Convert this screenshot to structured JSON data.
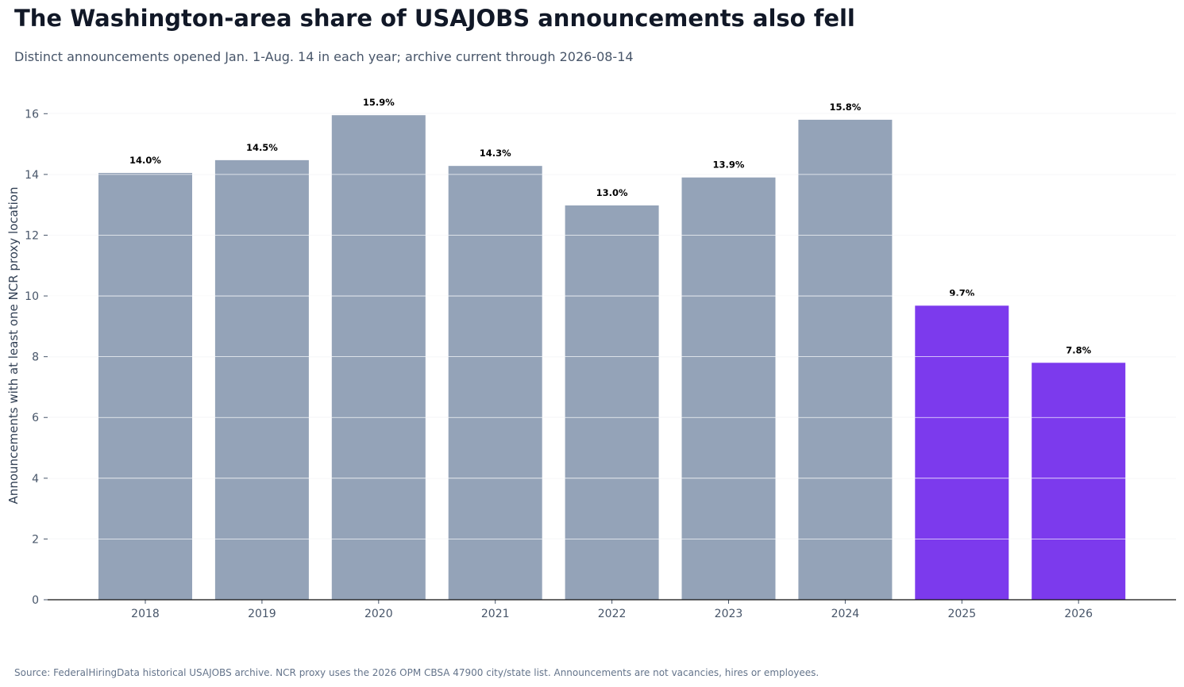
{
  "title": "The Washington-area share of USAJOBS announcements also fell",
  "subtitle": "Distinct announcements opened Jan. 1-Aug. 14 in each year; archive current through 2026-08-14",
  "source": "Source: FederalHiringData historical USAJOBS archive. NCR proxy uses the 2026 OPM CBSA 47900 city/state list. Announcements are not vacancies, hires or employees.",
  "chart_data": {
    "type": "bar",
    "title": "The Washington-area share of USAJOBS announcements also fell",
    "xlabel": "",
    "ylabel": "Announcements with at least one NCR proxy location",
    "categories": [
      "2018",
      "2019",
      "2020",
      "2021",
      "2022",
      "2023",
      "2024",
      "2025",
      "2026"
    ],
    "values": [
      14.05,
      14.47,
      15.95,
      14.28,
      12.98,
      13.9,
      15.8,
      9.68,
      7.8
    ],
    "data_labels": [
      "14.0%",
      "14.5%",
      "15.9%",
      "14.3%",
      "13.0%",
      "13.9%",
      "15.8%",
      "9.7%",
      "7.8%"
    ],
    "ylim": [
      0,
      17
    ],
    "yticks": [
      "0",
      "2",
      "4",
      "6",
      "8",
      "10",
      "12",
      "14",
      "16"
    ],
    "grid": true,
    "colors": {
      "default": "#94a3b8",
      "highlight": "#7c3aed",
      "highlighted_categories": [
        "2025",
        "2026"
      ]
    }
  }
}
